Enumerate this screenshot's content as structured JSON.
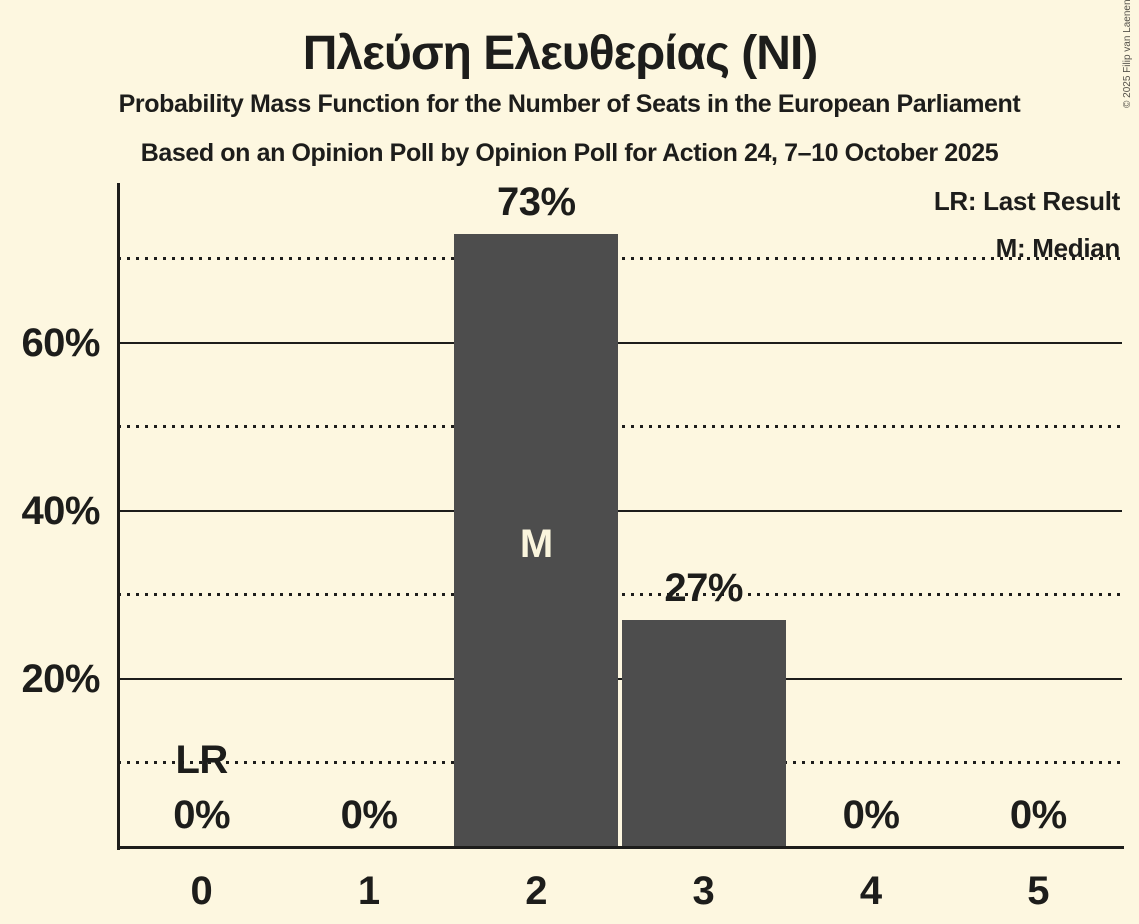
{
  "page": {
    "background": "#fdf7e0",
    "text_color": "#1d1d1b",
    "copyright": "© 2025 Filip van Laenen",
    "copyright_color": "#55524a"
  },
  "header": {
    "title": "Πλεύση Ελευθερίας (NI)",
    "subtitle": "Probability Mass Function for the Number of Seats in the European Parliament",
    "poll_line": "Based on an Opinion Poll by Opinion Poll for Action 24, 7–10 October 2025"
  },
  "legend": {
    "last_result": "LR: Last Result",
    "median": "M: Median"
  },
  "chart_data": {
    "type": "bar",
    "title": "Πλεύση Ελευθερίας (NI)",
    "categories": [
      "0",
      "1",
      "2",
      "3",
      "4",
      "5"
    ],
    "values": [
      0,
      0,
      73,
      27,
      0,
      0
    ],
    "value_labels": [
      "0%",
      "0%",
      "73%",
      "27%",
      "0%",
      "0%"
    ],
    "ylim": [
      0,
      79
    ],
    "yticks_solid": [
      20,
      40,
      60
    ],
    "yticks_dotted": [
      10,
      30,
      50,
      70
    ],
    "ytick_label_suffix": "%",
    "grid": true,
    "legend_position": "top-right",
    "markers": [
      {
        "type": "last_result",
        "seat": 0,
        "label": "LR"
      },
      {
        "type": "median",
        "seat": 2,
        "label": "M"
      }
    ],
    "bar_color": "#4d4d4d",
    "grid_color": "#1d1d1b",
    "median_label_color": "#faf5dd"
  }
}
